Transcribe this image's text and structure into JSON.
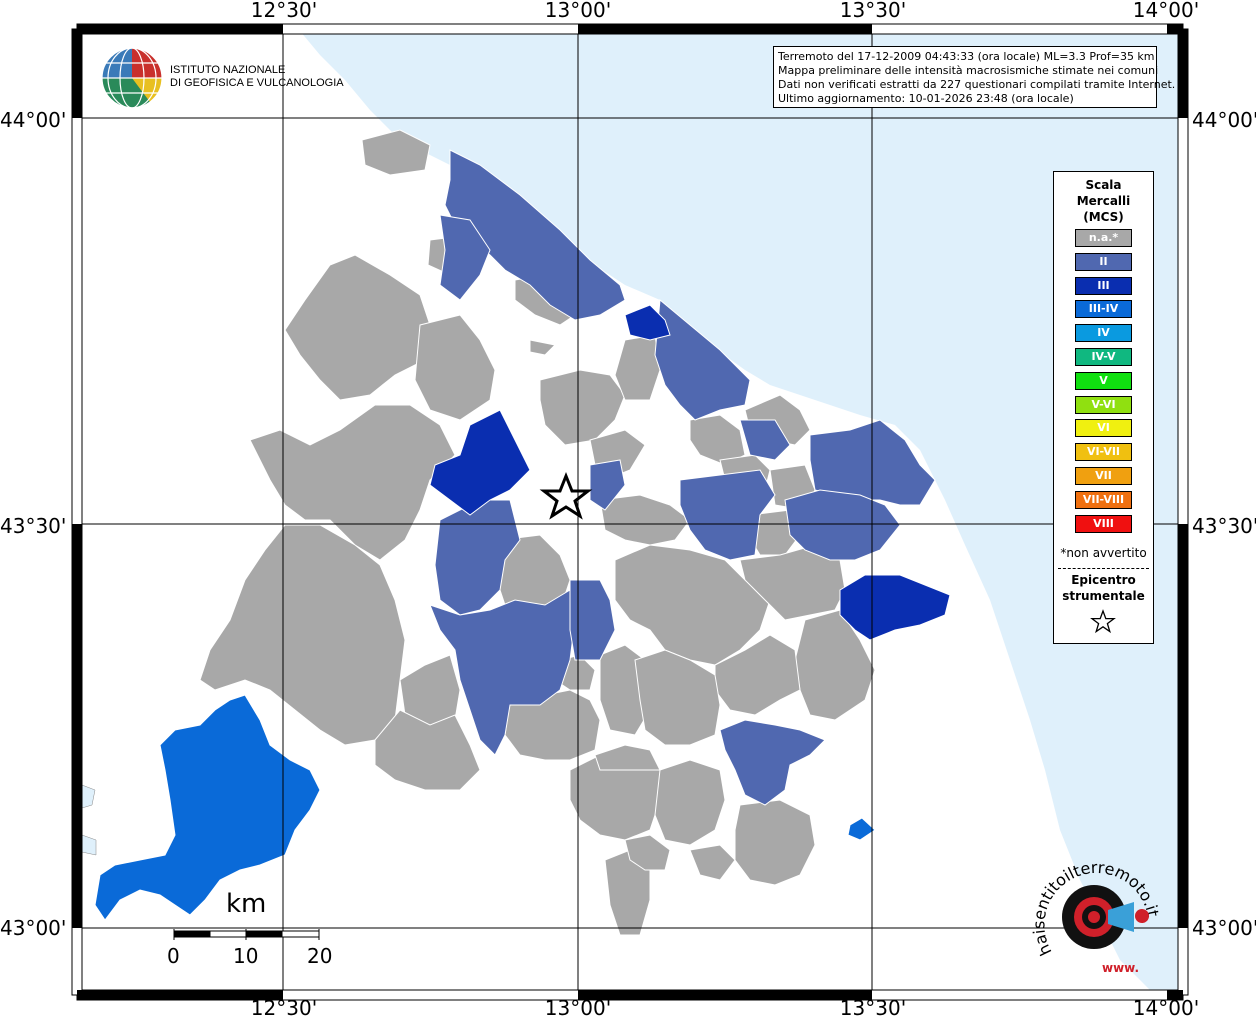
{
  "axis_ticks": {
    "top": [
      "12°30'",
      "13°00'",
      "13°30'",
      "14°00'"
    ],
    "bottom": [
      "12°30'",
      "13°00'",
      "13°30'",
      "14°00'"
    ],
    "left": [
      "44°00'",
      "43°30'",
      "43°00'"
    ],
    "right": [
      "44°00'",
      "43°30'",
      "43°00'"
    ]
  },
  "institute": {
    "line1": "ISTITUTO NAZIONALE",
    "line2": "DI GEOFISICA E VULCANOLOGIA"
  },
  "info": {
    "line1": "Terremoto del 17-12-2009 04:43:33 (ora locale) ML=3.3 Prof=35 km",
    "line2": "Mappa preliminare delle intensità macrosismiche stimate nei comuni",
    "line3": "Dati non verificati estratti da 227 questionari compilati tramite Internet.",
    "line4": "Ultimo aggiornamento: 10-01-2026 23:48 (ora locale)"
  },
  "legend": {
    "title": [
      "Scala",
      "Mercalli",
      "(MCS)"
    ],
    "items": [
      {
        "label": "n.a.*",
        "color": "#a8a8a8"
      },
      {
        "label": "II",
        "color": "#5068b0"
      },
      {
        "label": "III",
        "color": "#0a2eb0"
      },
      {
        "label": "III-IV",
        "color": "#0a6ad8"
      },
      {
        "label": "IV",
        "color": "#0a9ae0"
      },
      {
        "label": "IV-V",
        "color": "#10b880"
      },
      {
        "label": "V",
        "color": "#10e010"
      },
      {
        "label": "V-VI",
        "color": "#90e010"
      },
      {
        "label": "VI",
        "color": "#f0f010"
      },
      {
        "label": "VI-VII",
        "color": "#f0c010"
      },
      {
        "label": "VII",
        "color": "#f0a010"
      },
      {
        "label": "VII-VIII",
        "color": "#f07010"
      },
      {
        "label": "VIII",
        "color": "#f01010"
      }
    ],
    "note": "*non avvertito",
    "epicenter": [
      "Epicentro",
      "strumentale"
    ]
  },
  "scale_bar": {
    "unit": "km",
    "ticks": [
      "0",
      "10",
      "20"
    ]
  },
  "watermark": {
    "text": "haisentitoilterremoto.it",
    "site": "www."
  },
  "colors": {
    "sea": "#dff0fb",
    "na": "#a8a8a8",
    "ii": "#5068b0",
    "iii": "#0a2eb0",
    "iii_iv": "#0a6ad8"
  }
}
